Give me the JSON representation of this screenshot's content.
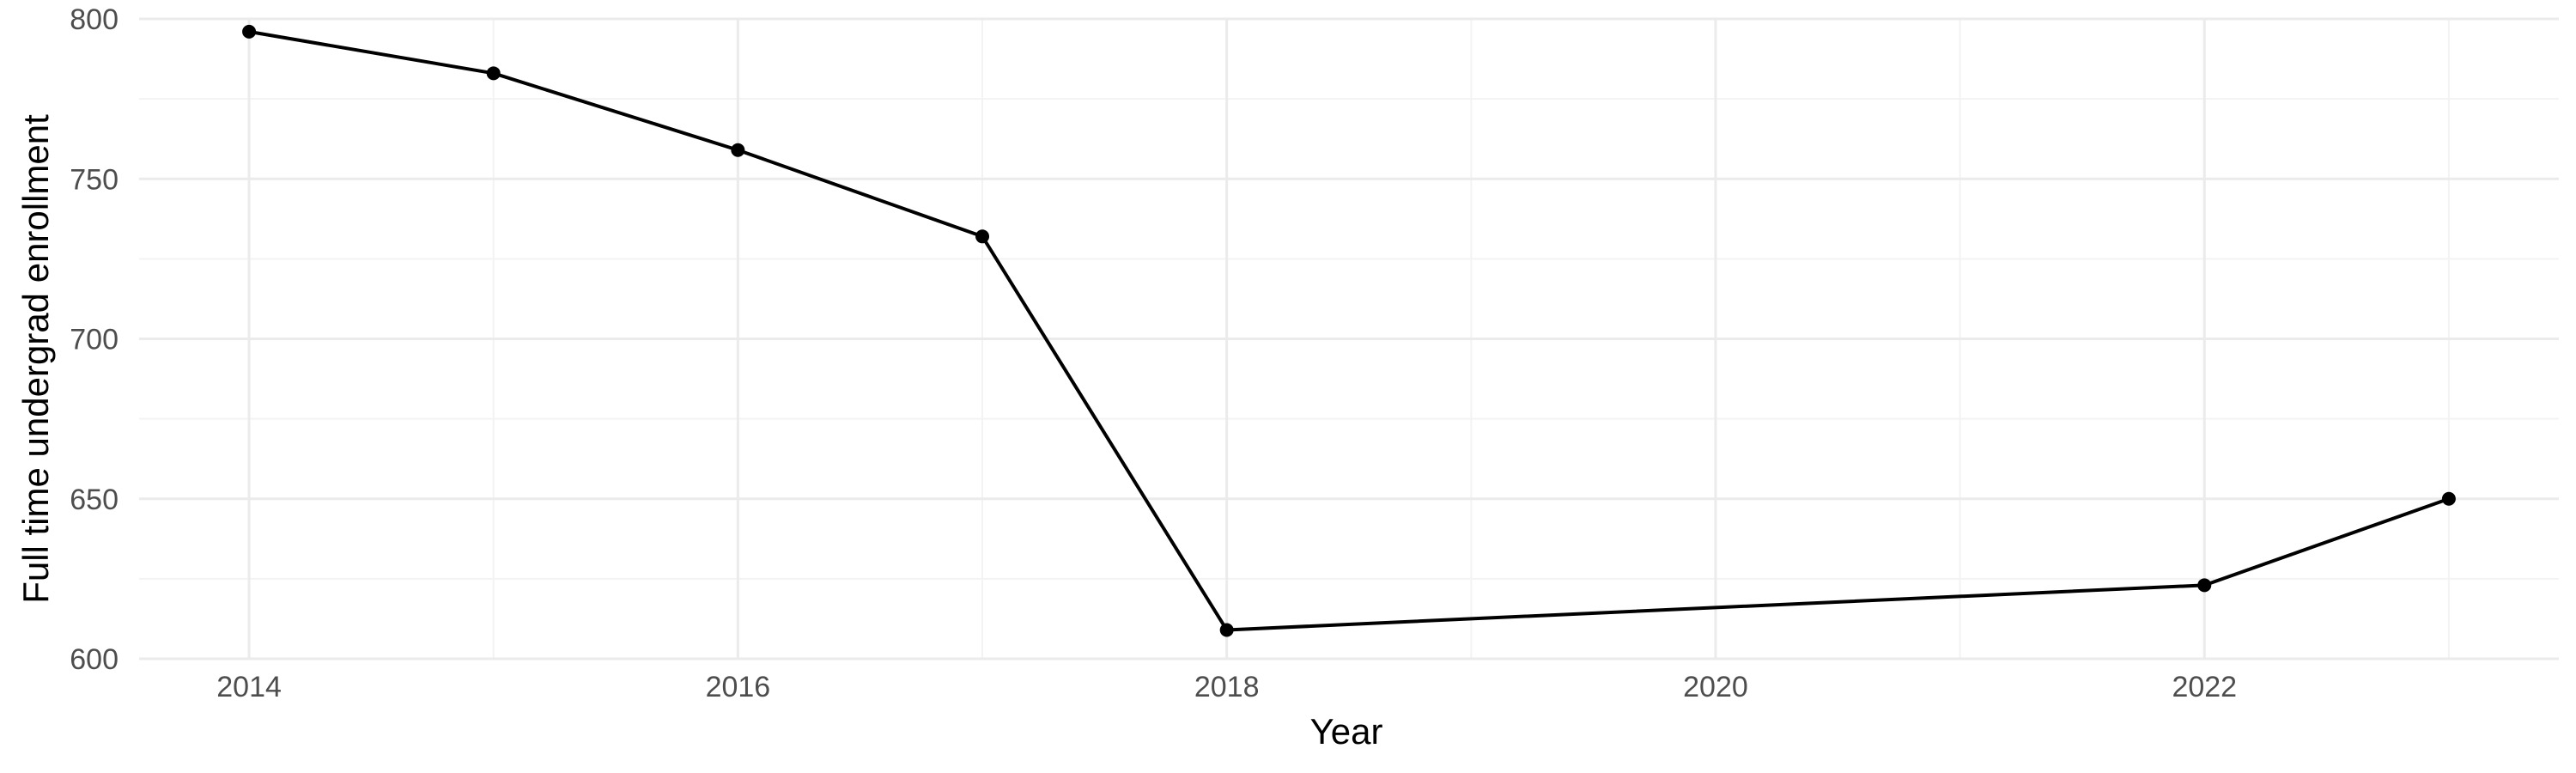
{
  "chart_data": {
    "type": "line",
    "title": "",
    "xlabel": "Year",
    "ylabel": "Full time undergrad enrollment",
    "x": [
      2014,
      2015,
      2016,
      2017,
      2018,
      2022,
      2023
    ],
    "series": [
      {
        "values": [
          796,
          783,
          759,
          732,
          609,
          623,
          650
        ]
      }
    ],
    "xlim": [
      2013.55,
      2023.45
    ],
    "ylim": [
      600,
      800
    ],
    "x_ticks": [
      2014,
      2016,
      2018,
      2020,
      2022
    ],
    "x_tick_labels": [
      "2014",
      "2016",
      "2018",
      "2020",
      "2022"
    ],
    "y_ticks": [
      600,
      650,
      700,
      750,
      800
    ],
    "y_tick_labels": [
      "600",
      "650",
      "700",
      "750",
      "800"
    ],
    "grid": true,
    "legend": "none",
    "line_color": "#000000",
    "grid_color": "#ebebeb"
  }
}
